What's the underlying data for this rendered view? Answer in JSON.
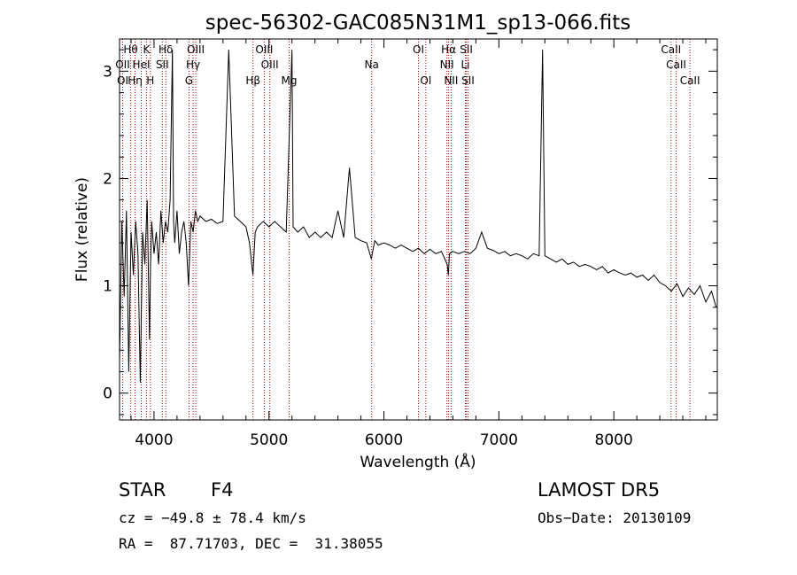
{
  "chart_data": {
    "type": "line",
    "title": "spec-56302-GAC085N31M1_sp13-066.fits",
    "xlabel": "Wavelength (Å)",
    "ylabel": "Flux (relative)",
    "xlim": [
      3700,
      8900
    ],
    "ylim": [
      -0.25,
      3.3
    ],
    "xticks": [
      4000,
      5000,
      6000,
      7000,
      8000
    ],
    "yticks": [
      0,
      1,
      2,
      3
    ],
    "grid": false,
    "series": [
      {
        "color": "#000000",
        "x": [
          3700,
          3720,
          3740,
          3760,
          3780,
          3800,
          3820,
          3840,
          3860,
          3880,
          3900,
          3920,
          3940,
          3960,
          3970,
          3980,
          4000,
          4020,
          4040,
          4060,
          4080,
          4100,
          4120,
          4140,
          4160,
          4170,
          4180,
          4200,
          4220,
          4240,
          4260,
          4280,
          4300,
          4320,
          4340,
          4360,
          4380,
          4400,
          4450,
          4500,
          4550,
          4600,
          4650,
          4700,
          4750,
          4800,
          4830,
          4860,
          4880,
          4900,
          4950,
          5000,
          5050,
          5100,
          5150,
          5200,
          5210,
          5250,
          5300,
          5350,
          5400,
          5450,
          5500,
          5550,
          5600,
          5650,
          5700,
          5750,
          5800,
          5850,
          5890,
          5920,
          5950,
          6000,
          6050,
          6100,
          6150,
          6200,
          6250,
          6300,
          6350,
          6400,
          6450,
          6500,
          6550,
          6560,
          6570,
          6600,
          6650,
          6700,
          6750,
          6800,
          6850,
          6900,
          6950,
          7000,
          7050,
          7100,
          7150,
          7200,
          7250,
          7300,
          7350,
          7380,
          7400,
          7450,
          7500,
          7550,
          7600,
          7650,
          7700,
          7750,
          7800,
          7850,
          7900,
          7950,
          8000,
          8050,
          8100,
          8150,
          8200,
          8250,
          8300,
          8350,
          8400,
          8450,
          8500,
          8550,
          8600,
          8650,
          8700,
          8750,
          8800,
          8850,
          8890
        ],
        "y": [
          0.3,
          1.6,
          0.9,
          1.7,
          0.2,
          1.5,
          1.1,
          1.6,
          1.3,
          0.1,
          1.5,
          1.2,
          1.8,
          0.5,
          1.2,
          1.6,
          1.3,
          1.5,
          1.2,
          1.7,
          1.4,
          1.6,
          1.5,
          1.8,
          3.2,
          1.6,
          1.4,
          1.7,
          1.3,
          1.5,
          1.6,
          1.4,
          1.0,
          1.6,
          1.5,
          1.7,
          1.6,
          1.65,
          1.6,
          1.62,
          1.58,
          1.6,
          3.2,
          1.65,
          1.6,
          1.55,
          1.4,
          1.1,
          1.5,
          1.55,
          1.6,
          1.55,
          1.6,
          1.55,
          1.5,
          3.2,
          1.55,
          1.5,
          1.55,
          1.45,
          1.5,
          1.45,
          1.5,
          1.45,
          1.7,
          1.45,
          2.1,
          1.45,
          1.42,
          1.4,
          1.25,
          1.42,
          1.38,
          1.4,
          1.38,
          1.35,
          1.38,
          1.35,
          1.32,
          1.35,
          1.3,
          1.34,
          1.3,
          1.32,
          1.2,
          1.1,
          1.3,
          1.32,
          1.3,
          1.32,
          1.3,
          1.35,
          1.5,
          1.35,
          1.33,
          1.3,
          1.32,
          1.28,
          1.3,
          1.28,
          1.25,
          1.3,
          1.28,
          3.2,
          1.28,
          1.25,
          1.22,
          1.25,
          1.2,
          1.22,
          1.18,
          1.2,
          1.18,
          1.15,
          1.18,
          1.12,
          1.15,
          1.12,
          1.1,
          1.12,
          1.08,
          1.1,
          1.05,
          1.1,
          1.03,
          1.0,
          0.95,
          1.02,
          0.9,
          0.98,
          0.92,
          1.0,
          0.85,
          0.95,
          0.8
        ]
      }
    ],
    "line_markers": [
      {
        "label": "Hθ",
        "wave": 3797,
        "row": 0
      },
      {
        "label": "K",
        "wave": 3934,
        "row": 0
      },
      {
        "label": "Hδ",
        "wave": 4102,
        "row": 0
      },
      {
        "label": "OIII",
        "wave": 4363,
        "row": 0
      },
      {
        "label": "OIII",
        "wave": 4959,
        "row": 0
      },
      {
        "label": "OI",
        "wave": 6300,
        "row": 0
      },
      {
        "label": "Hα",
        "wave": 6563,
        "row": 0
      },
      {
        "label": "SII",
        "wave": 6717,
        "row": 0
      },
      {
        "label": "CaII",
        "wave": 8498,
        "row": 0
      },
      {
        "label": "OII",
        "wave": 3727,
        "row": 1
      },
      {
        "label": "HeI",
        "wave": 3889,
        "row": 1
      },
      {
        "label": "SII",
        "wave": 4072,
        "row": 1
      },
      {
        "label": "Hγ",
        "wave": 4340,
        "row": 1
      },
      {
        "label": "OIII",
        "wave": 5007,
        "row": 1
      },
      {
        "label": "NII",
        "wave": 6548,
        "row": 1
      },
      {
        "label": "Li",
        "wave": 6708,
        "row": 1
      },
      {
        "label": "CaII",
        "wave": 8542,
        "row": 1
      },
      {
        "label": "OI",
        "wave": 3727,
        "row": 2
      },
      {
        "label": "Hη",
        "wave": 3835,
        "row": 2
      },
      {
        "label": "H",
        "wave": 3968,
        "row": 2
      },
      {
        "label": "G",
        "wave": 4304,
        "row": 2
      },
      {
        "label": "Hβ",
        "wave": 4861,
        "row": 2
      },
      {
        "label": "Mg",
        "wave": 5175,
        "row": 2
      },
      {
        "label": "Na",
        "wave": 5893,
        "row": 1.5
      },
      {
        "label": "OI",
        "wave": 6364,
        "row": 2
      },
      {
        "label": "NII",
        "wave": 6584,
        "row": 2
      },
      {
        "label": "SII",
        "wave": 6731,
        "row": 2
      },
      {
        "label": "CaII",
        "wave": 8662,
        "row": 2
      }
    ],
    "marker_color": "#a00000"
  },
  "info": {
    "obj_class": "STAR",
    "subclass": "F4",
    "survey": "LAMOST DR5",
    "cz": "cz = −49.8 ± 78.4 km/s",
    "obs_date": "Obs−Date: 20130109",
    "radec": "RA =  87.71703, DEC =  31.38055"
  }
}
